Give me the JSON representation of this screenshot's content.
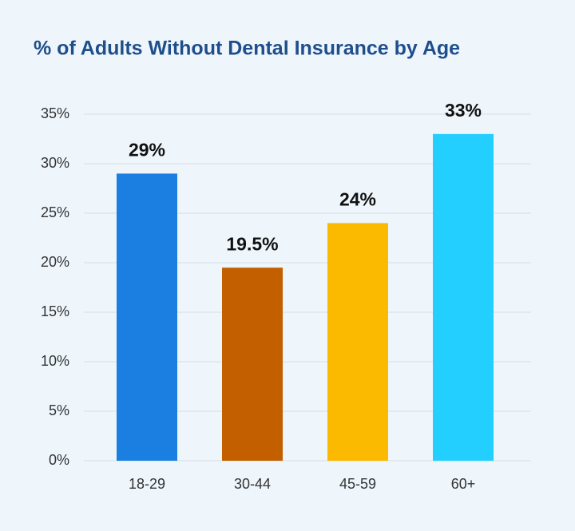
{
  "chart_data": {
    "type": "bar",
    "title": "% of Adults Without Dental Insurance by Age",
    "categories": [
      "18-29",
      "30-44",
      "45-59",
      "60+"
    ],
    "values": [
      29,
      19.5,
      24,
      33
    ],
    "value_labels": [
      "29%",
      "19.5%",
      "24%",
      "33%"
    ],
    "colors": [
      "#1a7fe0",
      "#c45f00",
      "#fbb900",
      "#22cfff"
    ],
    "ylim": [
      0,
      35
    ],
    "yticks": [
      {
        "value": 0,
        "label": "0%"
      },
      {
        "value": 5,
        "label": "5%"
      },
      {
        "value": 10,
        "label": "10%"
      },
      {
        "value": 15,
        "label": "15%"
      },
      {
        "value": 20,
        "label": "20%"
      },
      {
        "value": 25,
        "label": "25%"
      },
      {
        "value": 30,
        "label": "30%"
      },
      {
        "value": 35,
        "label": "35%"
      }
    ],
    "grid": true
  }
}
